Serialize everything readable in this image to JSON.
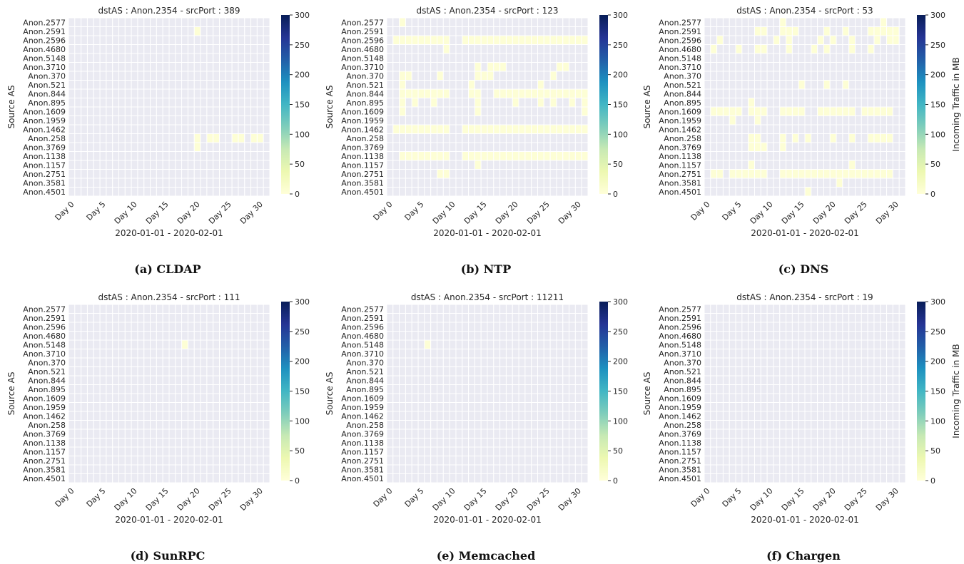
{
  "figure": {
    "colormap": [
      "#ffffd9",
      "#edf8b1",
      "#c7e9b4",
      "#7fcdbb",
      "#41b6c4",
      "#1d91c0",
      "#225ea8",
      "#253494",
      "#081d58"
    ],
    "empty_cell_color": "#eaeaf2"
  },
  "chart_data": [
    {
      "type": "heatmap",
      "caption": "(a) CLDAP",
      "title": "dstAS : Anon.2354 - srcPort : 389",
      "xlabel": "2020-01-01 - 2020-02-01",
      "ylabel": "Source AS",
      "colorbar_label": "",
      "x_tick_labels": [
        "Day 0",
        "Day 5",
        "Day 10",
        "Day 15",
        "Day 20",
        "Day 25",
        "Day 30"
      ],
      "x_tick_days": [
        0,
        5,
        10,
        15,
        20,
        25,
        30
      ],
      "y_labels": [
        "Anon.2577",
        "Anon.2591",
        "Anon.2596",
        "Anon.4680",
        "Anon.5148",
        "Anon.3710",
        "Anon.370",
        "Anon.521",
        "Anon.844",
        "Anon.895",
        "Anon.1609",
        "Anon.1959",
        "Anon.1462",
        "Anon.258",
        "Anon.3769",
        "Anon.1138",
        "Anon.1157",
        "Anon.2751",
        "Anon.3581",
        "Anon.4501"
      ],
      "colorbar_range": [
        0,
        300
      ],
      "colorbar_ticks": [
        "0",
        "50",
        "100",
        "150",
        "200",
        "250",
        "300"
      ],
      "num_days": 32,
      "nonzero_cells": [
        {
          "as": "Anon.2591",
          "days": [
            20
          ],
          "mb": 4
        },
        {
          "as": "Anon.258",
          "days": [
            20,
            22,
            23,
            26,
            27,
            29,
            30
          ],
          "mb": 4
        },
        {
          "as": "Anon.3769",
          "days": [
            20
          ],
          "mb": 4
        }
      ]
    },
    {
      "type": "heatmap",
      "caption": "(b) NTP",
      "title": "dstAS : Anon.2354 - srcPort : 123",
      "xlabel": "2020-01-01 - 2020-02-01",
      "ylabel": "Source AS",
      "colorbar_label": "",
      "x_tick_labels": [
        "Day 0",
        "Day 5",
        "Day 10",
        "Day 15",
        "Day 20",
        "Day 25",
        "Day 30"
      ],
      "x_tick_days": [
        0,
        5,
        10,
        15,
        20,
        25,
        30
      ],
      "y_labels": [
        "Anon.2577",
        "Anon.2591",
        "Anon.2596",
        "Anon.4680",
        "Anon.5148",
        "Anon.3710",
        "Anon.370",
        "Anon.521",
        "Anon.844",
        "Anon.895",
        "Anon.1609",
        "Anon.1959",
        "Anon.1462",
        "Anon.258",
        "Anon.3769",
        "Anon.1138",
        "Anon.1157",
        "Anon.2751",
        "Anon.3581",
        "Anon.4501"
      ],
      "colorbar_range": [
        0,
        300
      ],
      "colorbar_ticks": [
        "0",
        "50",
        "100",
        "150",
        "200",
        "250",
        "300"
      ],
      "num_days": 32,
      "nonzero_cells": [
        {
          "as": "Anon.2577",
          "days": [
            2
          ],
          "mb": 4
        },
        {
          "as": "Anon.2596",
          "days": [
            1,
            2,
            3,
            4,
            5,
            6,
            7,
            8,
            9,
            12,
            13,
            14,
            15,
            16,
            17,
            18,
            19,
            20,
            21,
            22,
            23,
            24,
            25,
            26,
            27,
            28,
            29,
            30,
            31
          ],
          "mb": 4
        },
        {
          "as": "Anon.4680",
          "days": [
            9
          ],
          "mb": 4
        },
        {
          "as": "Anon.3710",
          "days": [
            14,
            16,
            17,
            18,
            27,
            28
          ],
          "mb": 4
        },
        {
          "as": "Anon.370",
          "days": [
            2,
            3,
            8,
            14,
            15,
            16,
            26
          ],
          "mb": 4
        },
        {
          "as": "Anon.521",
          "days": [
            2,
            13,
            24
          ],
          "mb": 4
        },
        {
          "as": "Anon.844",
          "days": [
            2,
            3,
            4,
            5,
            6,
            7,
            8,
            9,
            13,
            14,
            17,
            18,
            19,
            20,
            21,
            22,
            23,
            24,
            25,
            26,
            27,
            28,
            29,
            30,
            31
          ],
          "mb": 4
        },
        {
          "as": "Anon.895",
          "days": [
            2,
            4,
            7,
            14,
            20,
            24,
            26,
            29,
            31
          ],
          "mb": 4
        },
        {
          "as": "Anon.1609",
          "days": [
            2,
            14,
            31
          ],
          "mb": 4
        },
        {
          "as": "Anon.1462",
          "days": [
            1,
            2,
            3,
            4,
            5,
            6,
            7,
            8,
            9,
            12,
            13,
            14,
            15,
            16,
            17,
            18,
            19,
            20,
            21,
            22,
            23,
            24,
            25,
            26,
            27,
            28,
            29,
            30,
            31
          ],
          "mb": 4
        },
        {
          "as": "Anon.1138",
          "days": [
            2,
            3,
            4,
            5,
            6,
            7,
            8,
            9,
            12,
            13,
            14,
            15,
            16,
            17,
            18,
            19,
            20,
            21,
            22,
            23,
            24,
            25,
            26,
            27,
            28,
            29,
            30,
            31
          ],
          "mb": 4
        },
        {
          "as": "Anon.1157",
          "days": [
            14
          ],
          "mb": 4
        },
        {
          "as": "Anon.2751",
          "days": [
            8,
            9
          ],
          "mb": 4
        }
      ]
    },
    {
      "type": "heatmap",
      "caption": "(c) DNS",
      "title": "dstAS : Anon.2354 - srcPort : 53",
      "xlabel": "2020-01-01 - 2020-02-01",
      "ylabel": "Source AS",
      "colorbar_label": "Incoming Traffic in MB",
      "x_tick_labels": [
        "Day 0",
        "Day 5",
        "Day 10",
        "Day 15",
        "Day 20",
        "Day 25",
        "Day 30"
      ],
      "x_tick_days": [
        0,
        5,
        10,
        15,
        20,
        25,
        30
      ],
      "y_labels": [
        "Anon.2577",
        "Anon.2591",
        "Anon.2596",
        "Anon.4680",
        "Anon.5148",
        "Anon.3710",
        "Anon.370",
        "Anon.521",
        "Anon.844",
        "Anon.895",
        "Anon.1609",
        "Anon.1959",
        "Anon.1462",
        "Anon.258",
        "Anon.3769",
        "Anon.1138",
        "Anon.1157",
        "Anon.2751",
        "Anon.3581",
        "Anon.4501"
      ],
      "colorbar_range": [
        0,
        300
      ],
      "colorbar_ticks": [
        "0",
        "50",
        "100",
        "150",
        "200",
        "250",
        "300"
      ],
      "num_days": 32,
      "nonzero_cells": [
        {
          "as": "Anon.2577",
          "days": [
            12,
            28
          ],
          "mb": 4
        },
        {
          "as": "Anon.2591",
          "days": [
            8,
            9,
            12,
            13,
            14,
            19,
            22,
            26,
            27,
            28,
            29,
            30
          ],
          "mb": 4
        },
        {
          "as": "Anon.2596",
          "days": [
            2,
            11,
            13,
            18,
            20,
            23,
            27,
            29,
            30
          ],
          "mb": 4
        },
        {
          "as": "Anon.4680",
          "days": [
            1,
            5,
            8,
            9,
            13,
            17,
            19,
            23,
            26
          ],
          "mb": 4
        },
        {
          "as": "Anon.521",
          "days": [
            15,
            19,
            22
          ],
          "mb": 4
        },
        {
          "as": "Anon.895",
          "days": [
            7
          ],
          "mb": 4
        },
        {
          "as": "Anon.1609",
          "days": [
            1,
            2,
            3,
            4,
            5,
            7,
            8,
            9,
            12,
            13,
            14,
            15,
            18,
            19,
            20,
            21,
            22,
            23,
            25,
            26,
            27,
            28,
            29
          ],
          "mb": 4
        },
        {
          "as": "Anon.1959",
          "days": [
            4,
            8
          ],
          "mb": 4
        },
        {
          "as": "Anon.258",
          "days": [
            7,
            8,
            12,
            14,
            16,
            20,
            23,
            26,
            27,
            28,
            29
          ],
          "mb": 4
        },
        {
          "as": "Anon.3769",
          "days": [
            7,
            8,
            9,
            12
          ],
          "mb": 4
        },
        {
          "as": "Anon.1157",
          "days": [
            7,
            23
          ],
          "mb": 4
        },
        {
          "as": "Anon.2751",
          "days": [
            1,
            2,
            4,
            5,
            6,
            7,
            8,
            9,
            12,
            13,
            14,
            15,
            16,
            17,
            18,
            19,
            20,
            21,
            22,
            23,
            24,
            25,
            26,
            27,
            28,
            29
          ],
          "mb": 4
        },
        {
          "as": "Anon.3581",
          "days": [
            21
          ],
          "mb": 4
        },
        {
          "as": "Anon.4501",
          "days": [
            16
          ],
          "mb": 4
        }
      ]
    },
    {
      "type": "heatmap",
      "caption": "(d) SunRPC",
      "title": "dstAS : Anon.2354 - srcPort : 111",
      "xlabel": "2020-01-01 - 2020-02-01",
      "ylabel": "Source AS",
      "colorbar_label": "",
      "x_tick_labels": [
        "Day 0",
        "Day 5",
        "Day 10",
        "Day 15",
        "Day 20",
        "Day 25",
        "Day 30"
      ],
      "x_tick_days": [
        0,
        5,
        10,
        15,
        20,
        25,
        30
      ],
      "y_labels": [
        "Anon.2577",
        "Anon.2591",
        "Anon.2596",
        "Anon.4680",
        "Anon.5148",
        "Anon.3710",
        "Anon.370",
        "Anon.521",
        "Anon.844",
        "Anon.895",
        "Anon.1609",
        "Anon.1959",
        "Anon.1462",
        "Anon.258",
        "Anon.3769",
        "Anon.1138",
        "Anon.1157",
        "Anon.2751",
        "Anon.3581",
        "Anon.4501"
      ],
      "colorbar_range": [
        0,
        300
      ],
      "colorbar_ticks": [
        "0",
        "50",
        "100",
        "150",
        "200",
        "250",
        "300"
      ],
      "num_days": 32,
      "nonzero_cells": [
        {
          "as": "Anon.5148",
          "days": [
            18
          ],
          "mb": 4
        }
      ]
    },
    {
      "type": "heatmap",
      "caption": "(e) Memcached",
      "title": "dstAS : Anon.2354 - srcPort : 11211",
      "xlabel": "2020-01-01 - 2020-02-01",
      "ylabel": "Source AS",
      "colorbar_label": "",
      "x_tick_labels": [
        "Day 0",
        "Day 5",
        "Day 10",
        "Day 15",
        "Day 20",
        "Day 25",
        "Day 30"
      ],
      "x_tick_days": [
        0,
        5,
        10,
        15,
        20,
        25,
        30
      ],
      "y_labels": [
        "Anon.2577",
        "Anon.2591",
        "Anon.2596",
        "Anon.4680",
        "Anon.5148",
        "Anon.3710",
        "Anon.370",
        "Anon.521",
        "Anon.844",
        "Anon.895",
        "Anon.1609",
        "Anon.1959",
        "Anon.1462",
        "Anon.258",
        "Anon.3769",
        "Anon.1138",
        "Anon.1157",
        "Anon.2751",
        "Anon.3581",
        "Anon.4501"
      ],
      "colorbar_range": [
        0,
        300
      ],
      "colorbar_ticks": [
        "0",
        "50",
        "100",
        "150",
        "200",
        "250",
        "300"
      ],
      "num_days": 32,
      "nonzero_cells": [
        {
          "as": "Anon.5148",
          "days": [
            6
          ],
          "mb": 4
        }
      ]
    },
    {
      "type": "heatmap",
      "caption": "(f) Chargen",
      "title": "dstAS : Anon.2354 - srcPort : 19",
      "xlabel": "2020-01-01 - 2020-02-01",
      "ylabel": "Source AS",
      "colorbar_label": "Incoming Traffic in MB",
      "x_tick_labels": [
        "Day 0",
        "Day 5",
        "Day 10",
        "Day 15",
        "Day 20",
        "Day 25",
        "Day 30"
      ],
      "x_tick_days": [
        0,
        5,
        10,
        15,
        20,
        25,
        30
      ],
      "y_labels": [
        "Anon.2577",
        "Anon.2591",
        "Anon.2596",
        "Anon.4680",
        "Anon.5148",
        "Anon.3710",
        "Anon.370",
        "Anon.521",
        "Anon.844",
        "Anon.895",
        "Anon.1609",
        "Anon.1959",
        "Anon.1462",
        "Anon.258",
        "Anon.3769",
        "Anon.1138",
        "Anon.1157",
        "Anon.2751",
        "Anon.3581",
        "Anon.4501"
      ],
      "colorbar_range": [
        0,
        300
      ],
      "colorbar_ticks": [
        "0",
        "50",
        "100",
        "150",
        "200",
        "250",
        "300"
      ],
      "num_days": 32,
      "nonzero_cells": []
    }
  ]
}
